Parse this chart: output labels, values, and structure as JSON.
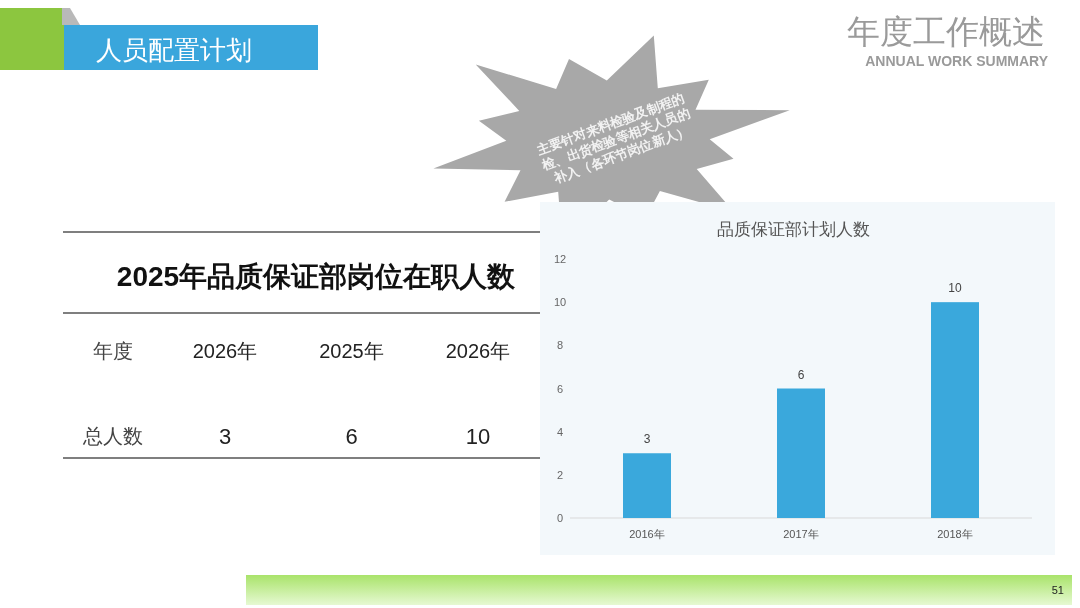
{
  "chart_data": [
    {
      "type": "other",
      "title": "2025年品质保证部岗位在职人数",
      "xlabel": "年度",
      "ylabel": "总人数",
      "categories": [
        "2026年",
        "2025年",
        "2026年"
      ],
      "values": [
        3,
        6,
        10
      ],
      "data_labels": true,
      "annotations": [
        "人员配置计划",
        "年度工作概述",
        "ANNUAL WORK SUMMARY",
        "主要针对来料检验及制程的检、出货检验等相关人员的补入（各环节岗位新人）",
        "51"
      ]
    },
    {
      "type": "bar",
      "title": "品质保证部计划人数",
      "categories": [
        "2016年",
        "2017年",
        "2018年"
      ],
      "values": [
        3,
        6,
        10
      ],
      "color": "#3aa8dc",
      "ylim": [
        0,
        12
      ],
      "yticks": [
        0,
        2,
        4,
        6,
        8,
        10,
        12
      ],
      "data_labels": true
    }
  ]
}
